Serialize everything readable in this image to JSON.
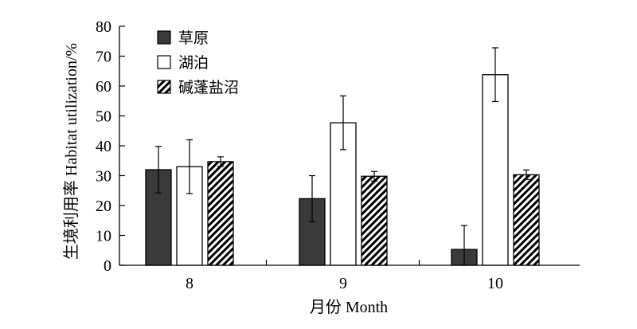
{
  "chart_data": {
    "type": "bar",
    "title": "",
    "xlabel": "月份 Month",
    "ylabel": "生境利用率 Habitat utilization/%",
    "categories": [
      "8",
      "9",
      "10"
    ],
    "ylim": [
      0,
      80
    ],
    "yticks": [
      0,
      10,
      20,
      30,
      40,
      50,
      60,
      70,
      80
    ],
    "grid": false,
    "legend_position": "top-left",
    "series": [
      {
        "name": "草原",
        "values": [
          32,
          22.3,
          5.3
        ],
        "errors": [
          7.8,
          7.7,
          8.0
        ],
        "fill": "#3a3a3a",
        "pattern": "solid"
      },
      {
        "name": "湖泊",
        "values": [
          33,
          47.7,
          63.8
        ],
        "errors": [
          9.0,
          9.0,
          9.0
        ],
        "fill": "#ffffff",
        "pattern": "solid"
      },
      {
        "name": "碱蓬盐沼",
        "values": [
          34.7,
          29.8,
          30.3
        ],
        "errors": [
          1.6,
          1.6,
          1.6
        ],
        "fill": "#000000",
        "pattern": "hatch"
      }
    ]
  }
}
